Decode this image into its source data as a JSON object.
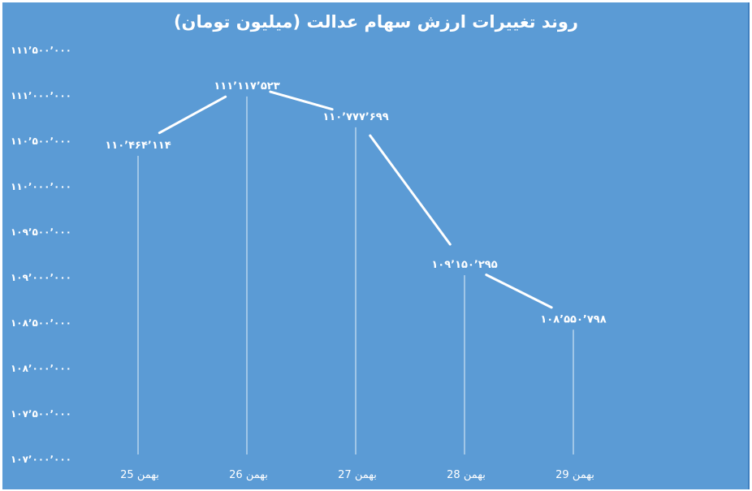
{
  "chart_data": {
    "type": "line",
    "title": "روند تغییرات ارزش سهام عدالت (میلیون تومان)",
    "categories": [
      "25 بهمن",
      "26 بهمن",
      "27 بهمن",
      "28 بهمن",
      "29 بهمن"
    ],
    "series": [
      {
        "values": [
          110464114,
          111117523,
          110777699,
          109150295,
          108550798
        ]
      }
    ],
    "data_labels": [
      "۱۱۰٬۴۶۴٬۱۱۴",
      "۱۱۱٬۱۱۷٬۵۲۳",
      "۱۱۰٬۷۷۷٬۶۹۹",
      "۱۰۹٬۱۵۰٬۲۹۵",
      "۱۰۸٬۵۵۰٬۷۹۸"
    ],
    "ylim": [
      107000000,
      111500000
    ],
    "yticks": [
      107000000,
      107500000,
      108000000,
      108500000,
      109000000,
      109500000,
      110000000,
      110500000,
      111000000,
      111500000
    ],
    "ytick_labels": [
      "۱۰۷٬۰۰۰٬۰۰۰",
      "۱۰۷٬۵۰۰٬۰۰۰",
      "۱۰۸٬۰۰۰٬۰۰۰",
      "۱۰۸٬۵۰۰٬۰۰۰",
      "۱۰۹٬۰۰۰٬۰۰۰",
      "۱۰۹٬۵۰۰٬۰۰۰",
      "۱۱۰٬۰۰۰٬۰۰۰",
      "۱۱۰٬۵۰۰٬۰۰۰",
      "۱۱۱٬۰۰۰٬۰۰۰",
      "۱۱۱٬۵۰۰٬۰۰۰"
    ],
    "grid": false,
    "legend": "none",
    "drop_lines": true,
    "colors": {
      "background": "#5b9bd5",
      "line": "#ffffff",
      "text": "#ffffff"
    }
  }
}
